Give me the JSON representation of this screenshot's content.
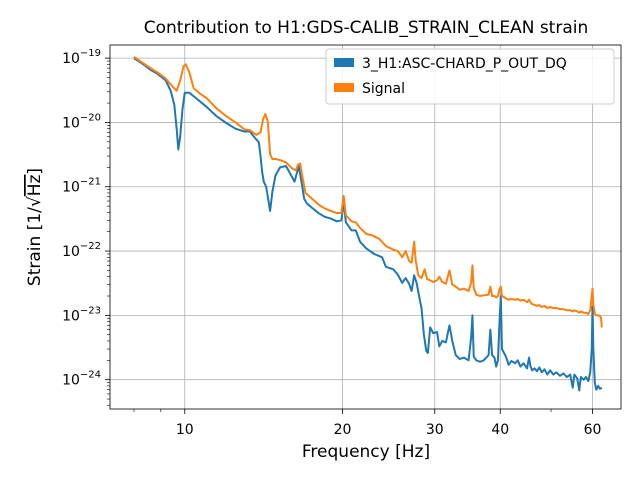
{
  "chart_data": {
    "type": "line",
    "title": "Contribution to H1:GDS-CALIB_STRAIN_CLEAN strain",
    "xlabel": "Frequency [Hz]",
    "ylabel_prefix": "Strain [1/",
    "ylabel_sqrt": "Hz",
    "ylabel_suffix": "]",
    "xscale": "log",
    "yscale": "log",
    "xlim": [
      7.2,
      68
    ],
    "ylim": [
      3.5e-25,
      1.6e-19
    ],
    "x_ticks": [
      {
        "value": 10,
        "label": "10"
      },
      {
        "value": 20,
        "label": "20"
      },
      {
        "value": 30,
        "label": "30"
      },
      {
        "value": 40,
        "label": "40"
      },
      {
        "value": 60,
        "label": "60"
      }
    ],
    "y_ticks": [
      {
        "value": 1e-24,
        "mant": "10",
        "exp": "−24"
      },
      {
        "value": 1e-23,
        "mant": "10",
        "exp": "−23"
      },
      {
        "value": 1e-22,
        "mant": "10",
        "exp": "−22"
      },
      {
        "value": 1e-21,
        "mant": "10",
        "exp": "−21"
      },
      {
        "value": 1e-20,
        "mant": "10",
        "exp": "−20"
      },
      {
        "value": 1e-19,
        "mant": "10",
        "exp": "−19"
      }
    ],
    "grid": true,
    "legend_position": "top-right",
    "series": [
      {
        "name": "3_H1:ASC-CHARD_P_OUT_DQ",
        "color": "#1f77b4",
        "points": [
          [
            8.0,
            1e-19
          ],
          [
            8.3,
            8.2e-20
          ],
          [
            8.6,
            6.6e-20
          ],
          [
            8.9,
            5.6e-20
          ],
          [
            9.2,
            4.5e-20
          ],
          [
            9.4,
            3.1e-20
          ],
          [
            9.55,
            1.9e-20
          ],
          [
            9.65,
            8e-21
          ],
          [
            9.72,
            3.8e-21
          ],
          [
            9.8,
            6e-21
          ],
          [
            9.9,
            1.6e-20
          ],
          [
            10.0,
            2.9e-20
          ],
          [
            10.2,
            2.9e-20
          ],
          [
            10.5,
            2.4e-20
          ],
          [
            11.0,
            1.75e-20
          ],
          [
            11.5,
            1.25e-20
          ],
          [
            12.0,
            9.8e-21
          ],
          [
            12.5,
            8e-21
          ],
          [
            13.0,
            7.2e-21
          ],
          [
            13.3,
            7.3e-21
          ],
          [
            13.6,
            5.8e-21
          ],
          [
            13.85,
            4.9e-21
          ],
          [
            13.95,
            3e-21
          ],
          [
            14.05,
            1.7e-21
          ],
          [
            14.15,
            1.2e-21
          ],
          [
            14.3,
            1e-21
          ],
          [
            14.45,
            6e-22
          ],
          [
            14.55,
            4.2e-22
          ],
          [
            14.7,
            8.5e-22
          ],
          [
            14.9,
            1.5e-21
          ],
          [
            15.2,
            2e-21
          ],
          [
            15.6,
            2.1e-21
          ],
          [
            16.0,
            1.45e-21
          ],
          [
            16.2,
            1.2e-21
          ],
          [
            16.5,
            2.1e-21
          ],
          [
            16.7,
            1.2e-21
          ],
          [
            16.9,
            6.5e-22
          ],
          [
            17.1,
            5.5e-22
          ],
          [
            17.5,
            4.7e-22
          ],
          [
            18.0,
            3.9e-22
          ],
          [
            18.5,
            3.4e-22
          ],
          [
            19.0,
            3.2e-22
          ],
          [
            19.5,
            2.9e-22
          ],
          [
            19.9,
            3e-22
          ],
          [
            20.1,
            5.8e-22
          ],
          [
            20.3,
            2.8e-22
          ],
          [
            20.8,
            2.1e-22
          ],
          [
            21.2,
            2.1e-22
          ],
          [
            21.6,
            1.4e-22
          ],
          [
            22.2,
            1.1e-22
          ],
          [
            23.0,
            9e-23
          ],
          [
            23.8,
            8e-23
          ],
          [
            24.2,
            5.7e-23
          ],
          [
            25.0,
            5.2e-23
          ],
          [
            25.5,
            4.3e-23
          ],
          [
            26.0,
            3.2e-23
          ],
          [
            26.4,
            3.8e-23
          ],
          [
            26.8,
            3.1e-23
          ],
          [
            27.1,
            2.4e-23
          ],
          [
            27.4,
            4.2e-23
          ],
          [
            27.7,
            3.2e-23
          ],
          [
            28.0,
            2e-23
          ],
          [
            28.3,
            1.3e-23
          ],
          [
            28.6,
            5e-24
          ],
          [
            28.9,
            2.8e-24
          ],
          [
            29.1,
            2.6e-24
          ],
          [
            29.4,
            6.5e-24
          ],
          [
            29.8,
            5.3e-24
          ],
          [
            30.3,
            5.5e-24
          ],
          [
            30.6,
            3.3e-24
          ],
          [
            31.0,
            4e-24
          ],
          [
            31.5,
            3.8e-24
          ],
          [
            32.0,
            7e-24
          ],
          [
            32.4,
            4e-24
          ],
          [
            32.9,
            2.4e-24
          ],
          [
            33.5,
            2.1e-24
          ],
          [
            34.1,
            2.2e-24
          ],
          [
            34.8,
            2e-24
          ],
          [
            35.2,
            4.5e-24
          ],
          [
            35.4,
            1e-23
          ],
          [
            35.6,
            2.3e-24
          ],
          [
            36.0,
            2e-24
          ],
          [
            36.6,
            1.9e-24
          ],
          [
            37.2,
            2e-24
          ],
          [
            38.0,
            2.4e-24
          ],
          [
            38.3,
            6e-24
          ],
          [
            38.6,
            2.4e-24
          ],
          [
            39.0,
            2.2e-24
          ],
          [
            39.3,
            1.6e-24
          ],
          [
            39.6,
            2e-24
          ],
          [
            39.9,
            9e-24
          ],
          [
            40.1,
            2e-23
          ],
          [
            40.3,
            3e-24
          ],
          [
            41.0,
            2.3e-24
          ],
          [
            41.5,
            1.7e-24
          ],
          [
            42.0,
            1.95e-24
          ],
          [
            42.7,
            1.8e-24
          ],
          [
            43.2,
            2e-24
          ],
          [
            43.7,
            1.6e-24
          ],
          [
            44.3,
            1.8e-24
          ],
          [
            45.0,
            1.5e-24
          ],
          [
            45.4,
            2.2e-24
          ],
          [
            45.7,
            1.6e-24
          ],
          [
            46.0,
            1.4e-24
          ],
          [
            46.5,
            1.5e-24
          ],
          [
            47.0,
            1.35e-24
          ],
          [
            47.5,
            1.55e-24
          ],
          [
            48.0,
            1.3e-24
          ],
          [
            48.6,
            1.45e-24
          ],
          [
            49.2,
            1.2e-24
          ],
          [
            49.8,
            1.4e-24
          ],
          [
            50.5,
            1.2e-24
          ],
          [
            51.2,
            1.3e-24
          ],
          [
            52.0,
            1.15e-24
          ],
          [
            52.8,
            1.25e-24
          ],
          [
            53.6,
            1.1e-24
          ],
          [
            54.4,
            1.2e-24
          ],
          [
            55.0,
            7.5e-25
          ],
          [
            55.4,
            1.2e-24
          ],
          [
            56.1,
            1.05e-24
          ],
          [
            56.6,
            6.8e-25
          ],
          [
            57.0,
            1.1e-24
          ],
          [
            57.7,
            1e-24
          ],
          [
            58.3,
            1.1e-24
          ],
          [
            58.9,
            9.5e-25
          ],
          [
            59.4,
            1.3e-24
          ],
          [
            59.8,
            3e-24
          ],
          [
            60.0,
            1.4e-23
          ],
          [
            60.2,
            3.2e-24
          ],
          [
            60.6,
            9e-25
          ],
          [
            61.0,
            7e-25
          ],
          [
            61.5,
            8e-25
          ],
          [
            62.0,
            7.2e-25
          ],
          [
            62.5,
            7.5e-25
          ]
        ]
      },
      {
        "name": "Signal",
        "color": "#ff7f0e",
        "points": [
          [
            8.0,
            1.05e-19
          ],
          [
            8.3,
            8.5e-20
          ],
          [
            8.6,
            7e-20
          ],
          [
            8.9,
            5.9e-20
          ],
          [
            9.2,
            4.8e-20
          ],
          [
            9.45,
            3.7e-20
          ],
          [
            9.65,
            3.1e-20
          ],
          [
            9.8,
            4.5e-20
          ],
          [
            9.95,
            7.5e-20
          ],
          [
            10.05,
            8e-20
          ],
          [
            10.2,
            6e-20
          ],
          [
            10.4,
            3.4e-20
          ],
          [
            10.7,
            2.8e-20
          ],
          [
            11.0,
            2.4e-20
          ],
          [
            11.5,
            1.65e-20
          ],
          [
            12.0,
            1.25e-20
          ],
          [
            12.5,
            1e-20
          ],
          [
            13.0,
            7.8e-21
          ],
          [
            13.3,
            7.6e-21
          ],
          [
            13.7,
            6.4e-21
          ],
          [
            13.95,
            7e-21
          ],
          [
            14.1,
            1.1e-20
          ],
          [
            14.25,
            1.35e-20
          ],
          [
            14.4,
            1.05e-20
          ],
          [
            14.55,
            3.2e-21
          ],
          [
            14.7,
            2.7e-21
          ],
          [
            14.9,
            2.7e-21
          ],
          [
            15.2,
            2.6e-21
          ],
          [
            15.6,
            2.4e-21
          ],
          [
            16.0,
            1.95e-21
          ],
          [
            16.3,
            1.8e-21
          ],
          [
            16.45,
            2.2e-21
          ],
          [
            16.6,
            2.3e-21
          ],
          [
            16.75,
            1.5e-21
          ],
          [
            17.0,
            8e-22
          ],
          [
            17.5,
            6.5e-22
          ],
          [
            18.0,
            5.3e-22
          ],
          [
            18.5,
            4.6e-22
          ],
          [
            19.0,
            4.2e-22
          ],
          [
            19.5,
            3.9e-22
          ],
          [
            19.9,
            3.9e-22
          ],
          [
            20.1,
            7.2e-22
          ],
          [
            20.3,
            3.6e-22
          ],
          [
            20.8,
            2.9e-22
          ],
          [
            21.2,
            2.8e-22
          ],
          [
            21.6,
            2.3e-22
          ],
          [
            22.2,
            1.85e-22
          ],
          [
            22.8,
            1.75e-22
          ],
          [
            23.5,
            1.55e-22
          ],
          [
            24.2,
            1.2e-22
          ],
          [
            25.0,
            1.05e-22
          ],
          [
            25.5,
            1e-22
          ],
          [
            26.0,
            8e-23
          ],
          [
            26.4,
            1e-22
          ],
          [
            26.8,
            7e-23
          ],
          [
            27.1,
            6.6e-23
          ],
          [
            27.4,
            1.4e-22
          ],
          [
            27.6,
            7e-23
          ],
          [
            27.9,
            4.2e-23
          ],
          [
            28.3,
            3.8e-23
          ],
          [
            28.7,
            5.2e-23
          ],
          [
            29.0,
            3.7e-23
          ],
          [
            29.4,
            3.5e-23
          ],
          [
            29.8,
            3.3e-23
          ],
          [
            30.3,
            3.5e-23
          ],
          [
            30.6,
            4e-23
          ],
          [
            31.0,
            3.3e-23
          ],
          [
            31.5,
            3.1e-23
          ],
          [
            32.0,
            5e-23
          ],
          [
            32.4,
            3e-23
          ],
          [
            32.9,
            2.8e-23
          ],
          [
            33.5,
            2.5e-23
          ],
          [
            34.1,
            2.6e-23
          ],
          [
            34.8,
            2.4e-23
          ],
          [
            35.2,
            3.2e-23
          ],
          [
            35.4,
            6e-23
          ],
          [
            35.6,
            2.7e-23
          ],
          [
            36.0,
            2.1e-23
          ],
          [
            36.6,
            2e-23
          ],
          [
            37.2,
            2.05e-23
          ],
          [
            38.0,
            2.1e-23
          ],
          [
            38.3,
            2.8e-23
          ],
          [
            38.6,
            2e-23
          ],
          [
            39.0,
            2e-23
          ],
          [
            39.3,
            1.9e-23
          ],
          [
            39.6,
            2e-23
          ],
          [
            39.9,
            2.6e-23
          ],
          [
            40.1,
            2.8e-23
          ],
          [
            40.3,
            2e-23
          ],
          [
            41.0,
            1.85e-23
          ],
          [
            41.5,
            1.75e-23
          ],
          [
            42.0,
            1.8e-23
          ],
          [
            42.7,
            1.75e-23
          ],
          [
            43.2,
            1.8e-23
          ],
          [
            43.7,
            1.7e-23
          ],
          [
            44.3,
            1.75e-23
          ],
          [
            45.0,
            1.6e-23
          ],
          [
            45.4,
            1.75e-23
          ],
          [
            45.7,
            1.6e-23
          ],
          [
            46.0,
            1.5e-23
          ],
          [
            46.5,
            1.45e-23
          ],
          [
            47.0,
            1.4e-23
          ],
          [
            47.5,
            1.45e-23
          ],
          [
            48.0,
            1.35e-23
          ],
          [
            48.6,
            1.4e-23
          ],
          [
            49.2,
            1.3e-23
          ],
          [
            49.8,
            1.35e-23
          ],
          [
            50.5,
            1.3e-23
          ],
          [
            51.2,
            1.3e-23
          ],
          [
            52.0,
            1.25e-23
          ],
          [
            52.8,
            1.25e-23
          ],
          [
            53.6,
            1.2e-23
          ],
          [
            54.4,
            1.2e-23
          ],
          [
            55.0,
            1.15e-23
          ],
          [
            55.4,
            1.2e-23
          ],
          [
            56.1,
            1.15e-23
          ],
          [
            56.6,
            1.1e-23
          ],
          [
            57.0,
            1.15e-23
          ],
          [
            57.7,
            1.1e-23
          ],
          [
            58.3,
            1.1e-23
          ],
          [
            58.9,
            1.05e-23
          ],
          [
            59.4,
            1.2e-23
          ],
          [
            59.8,
            2e-23
          ],
          [
            60.0,
            2.6e-23
          ],
          [
            60.2,
            1.5e-23
          ],
          [
            60.6,
            1.05e-23
          ],
          [
            61.0,
            1e-23
          ],
          [
            61.5,
            1e-23
          ],
          [
            62.0,
            9.8e-24
          ],
          [
            62.3,
            9e-24
          ],
          [
            62.5,
            6.5e-24
          ]
        ]
      }
    ]
  }
}
